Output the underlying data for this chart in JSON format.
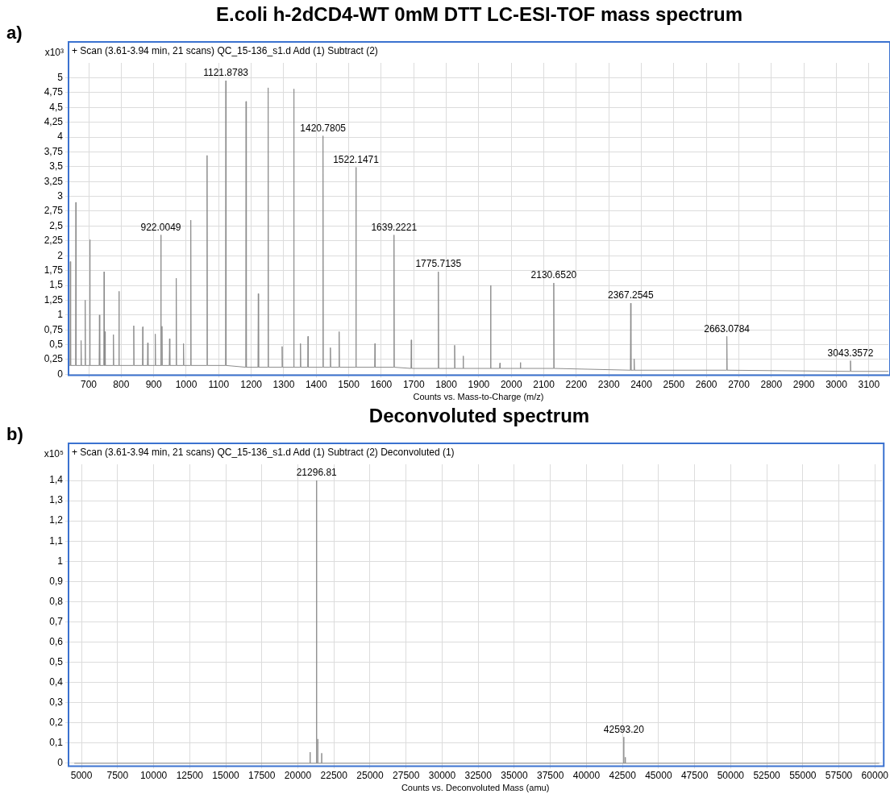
{
  "chart_data": [
    {
      "type": "line",
      "title": "E.coli h-2dCD4-WT 0mM DTT LC-ESI-TOF mass spectrum",
      "subtitle": "+ Scan (3.61-3.94 min, 21 scans) QC_15-136_s1.d Add (1) Subtract (2)",
      "xlabel": "Counts vs. Mass-to-Charge (m/z)",
      "ylabel": "x10³",
      "color": "#8c8c8c",
      "grid": true,
      "annotations": [
        "a)",
        {
          "text": "922.0049",
          "x": 922.0049,
          "y": 2.35
        },
        {
          "text": "1121.8783",
          "x": 1121.8783,
          "y": 4.95
        },
        {
          "text": "1420.7805",
          "x": 1420.7805,
          "y": 4.02
        },
        {
          "text": "1522.1471",
          "x": 1522.1471,
          "y": 3.49
        },
        {
          "text": "1639.2221",
          "x": 1639.2221,
          "y": 2.35
        },
        {
          "text": "1775.7135",
          "x": 1775.7135,
          "y": 1.73
        },
        {
          "text": "2130.6520",
          "x": 2130.652,
          "y": 1.54
        },
        {
          "text": "2367.2545",
          "x": 2367.2545,
          "y": 1.2
        },
        {
          "text": "2663.0784",
          "x": 2663.0784,
          "y": 0.64
        },
        {
          "text": "3043.3572",
          "x": 3043.3572,
          "y": 0.23
        }
      ],
      "x": [
        638,
        642.6,
        643.6,
        644.6,
        659.6,
        660.6,
        661.6,
        675.7,
        676.7,
        677.7,
        688.3,
        689.3,
        690.3,
        702.6,
        703.6,
        704.6,
        732.1,
        733.1,
        734.1,
        746.4,
        747.4,
        748.4,
        750.1,
        751.1,
        775.1,
        776.1,
        777.1,
        792.1,
        793.1,
        794.1,
        837.7,
        838.7,
        839.7,
        865.4,
        866.4,
        867.4,
        880.7,
        881.7,
        882.7,
        903.9,
        904.9,
        905.9,
        921,
        922,
        923,
        924.5,
        925.5,
        926.5,
        947.8,
        948.8,
        949.8,
        968.4,
        969.4,
        970.4,
        990.7,
        991.7,
        992.7,
        1013.1,
        1014.1,
        1015.1,
        1063.2,
        1064.2,
        1065.2,
        1120.9,
        1121.9,
        1122.9,
        1183.1,
        1184.1,
        1185.1,
        1220.7,
        1221.7,
        1222.7,
        1251.1,
        1252.1,
        1253.1,
        1294.1,
        1295.1,
        1296.1,
        1329.9,
        1330.9,
        1331.9,
        1350.5,
        1351.5,
        1352.5,
        1373.7,
        1374.7,
        1375.7,
        1419.8,
        1420.8,
        1421.8,
        1442.6,
        1443.6,
        1444.6,
        1469.5,
        1470.5,
        1471.5,
        1521.1,
        1522.1,
        1523.1,
        1579.6,
        1580.6,
        1581.6,
        1638.2,
        1639.2,
        1640.2,
        1691.4,
        1692.4,
        1693.4,
        1774.7,
        1775.7,
        1776.7,
        1824.7,
        1825.7,
        1826.7,
        1851,
        1852,
        1853,
        1935.4,
        1936.4,
        1937.4,
        1964,
        1965,
        1966,
        2027,
        2028,
        2029,
        2129.7,
        2130.7,
        2131.7,
        2366.3,
        2367.3,
        2368.3,
        2377,
        2378,
        2379,
        2662.1,
        2663.1,
        2664.1,
        3042.4,
        3043.4,
        3044.4,
        3160
      ],
      "values": [
        0.15,
        0.15,
        1.9,
        0.15,
        0.15,
        2.9,
        0.15,
        0.15,
        0.57,
        0.15,
        0.15,
        1.25,
        0.15,
        0.15,
        2.27,
        0.15,
        0.15,
        1.0,
        0.15,
        0.15,
        1.73,
        0.15,
        0.72,
        0.15,
        0.15,
        0.67,
        0.15,
        0.15,
        1.4,
        0.15,
        0.15,
        0.82,
        0.15,
        0.15,
        0.8,
        0.15,
        0.15,
        0.53,
        0.15,
        0.15,
        0.68,
        0.15,
        0.15,
        2.35,
        0.15,
        0.15,
        0.81,
        0.15,
        0.15,
        0.6,
        0.15,
        0.15,
        1.62,
        0.15,
        0.15,
        0.52,
        0.15,
        0.15,
        2.6,
        0.15,
        0.15,
        3.69,
        0.15,
        0.15,
        4.95,
        0.15,
        0.12,
        4.6,
        0.12,
        0.12,
        1.36,
        0.12,
        0.12,
        4.83,
        0.12,
        0.12,
        0.47,
        0.12,
        0.12,
        4.81,
        0.12,
        0.12,
        0.52,
        0.12,
        0.12,
        0.64,
        0.12,
        0.12,
        4.02,
        0.12,
        0.12,
        0.45,
        0.12,
        0.12,
        0.72,
        0.12,
        0.12,
        3.49,
        0.12,
        0.12,
        0.52,
        0.12,
        0.12,
        2.35,
        0.12,
        0.1,
        0.58,
        0.1,
        0.1,
        1.73,
        0.1,
        0.1,
        0.49,
        0.1,
        0.1,
        0.31,
        0.1,
        0.1,
        1.5,
        0.1,
        0.1,
        0.19,
        0.1,
        0.1,
        0.2,
        0.1,
        0.1,
        1.54,
        0.1,
        0.07,
        1.2,
        0.07,
        0.07,
        0.26,
        0.07,
        0.07,
        0.64,
        0.07,
        0.05,
        0.23,
        0.05,
        0.05
      ],
      "xlim": [
        638,
        3160
      ],
      "xticks": [
        700,
        800,
        900,
        1000,
        1100,
        1200,
        1300,
        1400,
        1500,
        1600,
        1700,
        1800,
        1900,
        2000,
        2100,
        2200,
        2300,
        2400,
        2500,
        2600,
        2700,
        2800,
        2900,
        3000,
        3100
      ],
      "ylim": [
        0,
        5.25
      ],
      "yticks": [
        0,
        {
          "value": 0.25,
          "label": "0,25"
        },
        {
          "value": 0.5,
          "label": "0,5"
        },
        {
          "value": 0.75,
          "label": "0,75"
        },
        1,
        {
          "value": 1.25,
          "label": "1,25"
        },
        {
          "value": 1.5,
          "label": "1,5"
        },
        {
          "value": 1.75,
          "label": "1,75"
        },
        2,
        {
          "value": 2.25,
          "label": "2,25"
        },
        {
          "value": 2.5,
          "label": "2,5"
        },
        {
          "value": 2.75,
          "label": "2,75"
        },
        3,
        {
          "value": 3.25,
          "label": "3,25"
        },
        {
          "value": 3.5,
          "label": "3,5"
        },
        {
          "value": 3.75,
          "label": "3,75"
        },
        4,
        {
          "value": 4.25,
          "label": "4,25"
        },
        {
          "value": 4.5,
          "label": "4,5"
        },
        {
          "value": 4.75,
          "label": "4,75"
        },
        5
      ]
    },
    {
      "type": "line",
      "title": "Deconvoluted spectrum",
      "subtitle": "+ Scan (3.61-3.94 min, 21 scans) QC_15-136_s1.d Add (1) Subtract (2) Deconvoluted (1)",
      "xlabel": "Counts vs. Deconvoluted Mass (amu)",
      "ylabel": "x10⁵",
      "color": "#8c8c8c",
      "grid": true,
      "annotations": [
        "b)",
        {
          "text": "21296.81",
          "x": 21296.81,
          "y": 1.4
        },
        {
          "text": "42593.20",
          "x": 42593.2,
          "y": 0.13
        }
      ],
      "x": [
        4500,
        20849,
        20850,
        20851,
        21295.8,
        21296.8,
        21297.8,
        21379,
        21380,
        21381,
        21649,
        21650,
        21651,
        42592.2,
        42593.2,
        42594.2,
        42699,
        42700,
        42701,
        60300
      ],
      "values": [
        0,
        0,
        0.055,
        0,
        0,
        1.4,
        0,
        0,
        0.12,
        0,
        0,
        0.05,
        0,
        0,
        0.13,
        0,
        0,
        0.03,
        0,
        0
      ],
      "xlim": [
        4100,
        60500
      ],
      "xticks": [
        5000,
        7500,
        10000,
        12500,
        15000,
        17500,
        20000,
        22500,
        25000,
        27500,
        30000,
        32500,
        35000,
        37500,
        40000,
        42500,
        45000,
        47500,
        50000,
        52500,
        55000,
        57500,
        60000
      ],
      "ylim": [
        -0.01,
        1.48
      ],
      "yticks": [
        0,
        {
          "value": 0.1,
          "label": "0,1"
        },
        {
          "value": 0.2,
          "label": "0,2"
        },
        {
          "value": 0.3,
          "label": "0,3"
        },
        {
          "value": 0.4,
          "label": "0,4"
        },
        {
          "value": 0.5,
          "label": "0,5"
        },
        {
          "value": 0.6,
          "label": "0,6"
        },
        {
          "value": 0.7,
          "label": "0,7"
        },
        {
          "value": 0.8,
          "label": "0,8"
        },
        {
          "value": 0.9,
          "label": "0,9"
        },
        1,
        {
          "value": 1.1,
          "label": "1,1"
        },
        {
          "value": 1.2,
          "label": "1,2"
        },
        {
          "value": 1.3,
          "label": "1,3"
        },
        {
          "value": 1.4,
          "label": "1,4"
        }
      ]
    }
  ]
}
